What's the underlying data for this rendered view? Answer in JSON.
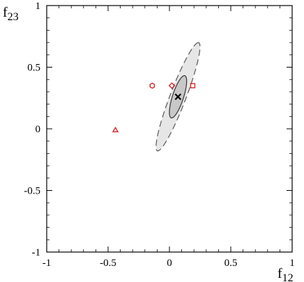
{
  "chart_data": {
    "type": "scatter",
    "title": "",
    "xlabel": "f12",
    "ylabel": "f23",
    "xlabel_parts": [
      "f",
      "12"
    ],
    "ylabel_parts": [
      "f",
      "23"
    ],
    "xlim": [
      -1,
      1
    ],
    "ylim": [
      -1,
      1
    ],
    "xticks": [
      -1,
      -0.5,
      0,
      0.5,
      1
    ],
    "xtick_labels": [
      "-1",
      "-0.5",
      "0",
      "0.5",
      "1"
    ],
    "yticks": [
      -1,
      -0.5,
      0,
      0.5,
      1
    ],
    "ytick_labels": [
      "-1",
      "-0.5",
      "0",
      "0.5",
      "1"
    ],
    "grid": false,
    "best_fit": {
      "x": 0.07,
      "y": 0.26,
      "marker": "x",
      "color": "#000000"
    },
    "confidence_regions": [
      {
        "level": "outer",
        "center": [
          0.07,
          0.26
        ],
        "semi_axes": [
          0.47,
          0.065
        ],
        "angle_deg": 69,
        "fill": "#e6e6e6",
        "stroke": "#555555",
        "dashed": true
      },
      {
        "level": "inner",
        "center": [
          0.07,
          0.26
        ],
        "semi_axes": [
          0.18,
          0.045
        ],
        "angle_deg": 72,
        "fill": "#c8c8c8",
        "stroke": "#333333",
        "dashed": false
      }
    ],
    "points": [
      {
        "x": -0.44,
        "y": -0.01,
        "marker": "triangle",
        "color": "#d62728"
      },
      {
        "x": -0.14,
        "y": 0.35,
        "marker": "hexagon",
        "color": "#d62728"
      },
      {
        "x": 0.02,
        "y": 0.35,
        "marker": "diamond",
        "color": "#d62728"
      },
      {
        "x": 0.19,
        "y": 0.35,
        "marker": "square",
        "color": "#d62728"
      }
    ]
  }
}
